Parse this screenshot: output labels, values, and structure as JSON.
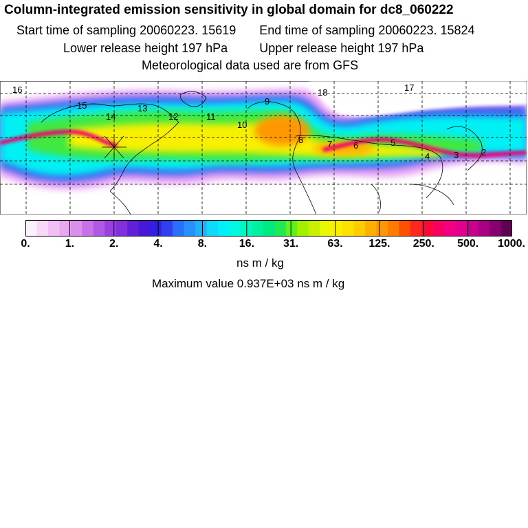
{
  "header": {
    "title": "Column-integrated emission sensitivity in global domain for dc8_060222",
    "start_label": "Start time of sampling",
    "start_value": "20060223. 15619",
    "end_label": "End time of sampling",
    "end_value": "20060223. 15824",
    "lower_label": "Lower release height",
    "lower_value": "197 hPa",
    "upper_label": "Upper release height",
    "upper_value": "197 hPa",
    "met_text": "Meteorological data used are from GFS"
  },
  "map": {
    "markers": [
      "16",
      "15",
      "14",
      "13",
      "12",
      "11",
      "10",
      "9",
      "8",
      "7",
      "6",
      "5",
      "4",
      "3",
      "2",
      "18",
      "17"
    ]
  },
  "colorbar": {
    "tick_labels": [
      "0.",
      "1.",
      "2.",
      "4.",
      "8.",
      "16.",
      "31.",
      "63.",
      "125.",
      "250.",
      "500.",
      "1000."
    ],
    "colors": [
      "#fdf0fd",
      "#f8d8f8",
      "#f0c0f4",
      "#e8a8f0",
      "#d890ec",
      "#c870e8",
      "#b058e4",
      "#9840e0",
      "#8030dc",
      "#6020d8",
      "#4818d8",
      "#3020e0",
      "#3040f0",
      "#2870f8",
      "#2890fc",
      "#20b0fc",
      "#10d8fc",
      "#00f0f8",
      "#00f8e0",
      "#00f8c0",
      "#00f0a0",
      "#00e880",
      "#20e850",
      "#60f020",
      "#a0f000",
      "#c8f000",
      "#e8f800",
      "#f8f000",
      "#ffe000",
      "#ffcc00",
      "#ffb000",
      "#ff9800",
      "#ff7c00",
      "#ff5000",
      "#ff2820",
      "#ff0838",
      "#f80060",
      "#f00080",
      "#e00090",
      "#c80090",
      "#a80080",
      "#880070",
      "#600050"
    ],
    "units": "ns m / kg"
  },
  "footer": {
    "max_label": "Maximum value",
    "max_value": "0.937E+03",
    "max_units": "ns m / kg"
  }
}
